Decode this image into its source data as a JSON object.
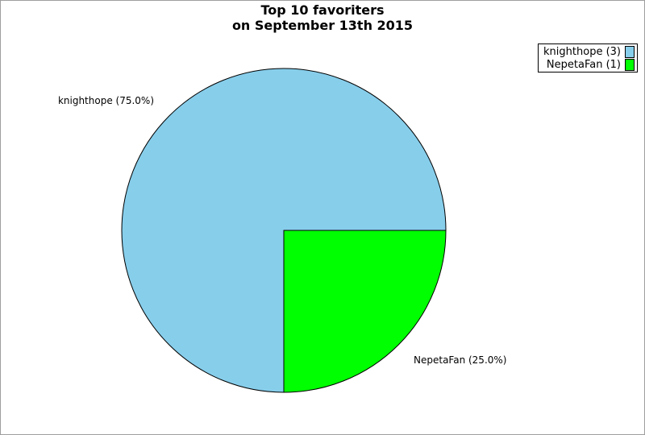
{
  "figure": {
    "background_color": "#ffffff",
    "border_color": "#9e9e9e",
    "edge_color": "#000000"
  },
  "chart_data": {
    "type": "pie",
    "title": "Top 10 favoriters\non September 13th 2015",
    "slices": [
      {
        "label": "knighthope",
        "value": 3,
        "percent": 75.0,
        "color": "#87CEEB",
        "legend_label": "knighthope (3)",
        "pie_label": "knighthope (75.0%)"
      },
      {
        "label": "NepetaFan",
        "value": 1,
        "percent": 25.0,
        "color": "#00FF00",
        "legend_label": "NepetaFan (1)",
        "pie_label": "NepetaFan (25.0%)"
      }
    ],
    "start_angle_deg": 0,
    "direction": "counterclockwise",
    "legend_position": "upper right",
    "grid": false
  }
}
